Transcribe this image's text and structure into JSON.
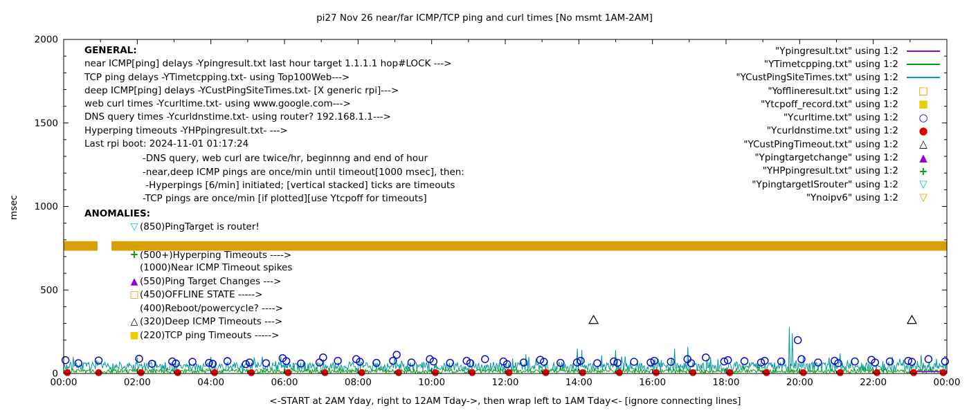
{
  "title": "pi27 Nov 26  near/far ICMP/TCP ping and curl times [No msmt 1AM-2AM]",
  "axes": {
    "ylabel": "msec",
    "y_ticks": [
      0,
      500,
      1000,
      1500,
      2000
    ],
    "x_tick_hours": [
      0,
      2,
      4,
      6,
      8,
      10,
      12,
      14,
      16,
      18,
      20,
      22,
      24
    ],
    "x_tick_labels": [
      "00:00",
      "02:00",
      "04:00",
      "06:00",
      "08:00",
      "10:00",
      "12:00",
      "14:00",
      "16:00",
      "18:00",
      "20:00",
      "22:00",
      "00:00"
    ],
    "x_label": "<-START at 2AM Yday, right to 12AM Tday->, then wrap left to 1AM Tday<- [ignore connecting lines]"
  },
  "legend": [
    {
      "label": "\"Ypingresult.txt\" using 1:2",
      "marker": "line",
      "color": "#9400D3"
    },
    {
      "label": "\"YTimetcpping.txt\" using 1:2",
      "marker": "line",
      "color": "#00A000"
    },
    {
      "label": "\"YCustPingSiteTimes.txt\" using 1:2",
      "marker": "line",
      "color": "#009999"
    },
    {
      "label": "\"Yofflineresult.txt\" using 1:2",
      "marker": "square-open",
      "color": "#FF8C00"
    },
    {
      "label": "\"Ytcpoff_record.txt\" using 1:2",
      "marker": "square-filled",
      "color": "#E8D000"
    },
    {
      "label": "\"Ycurltime.txt\" using 1:2",
      "marker": "circle-open",
      "color": "#0000CD"
    },
    {
      "label": "\"Ycurldnstime.txt\" using 1:2",
      "marker": "circle-filled",
      "color": "#DD0000"
    },
    {
      "label": "\"YCustPingTimeout.txt\" using 1:2",
      "marker": "triangle-open",
      "color": "#000000"
    },
    {
      "label": "\"Ypingtargetchange\" using 1:2",
      "marker": "triangle-filled",
      "color": "#9400D3"
    },
    {
      "label": "\"YHPpingresult.txt\" using 1:2",
      "marker": "plus",
      "color": "#00A000"
    },
    {
      "label": "\"YpingtargetISrouter\" using 1:2",
      "marker": "tri-down-open",
      "color": "#00C0C0"
    },
    {
      "label": "\"Ynoipv6\" using 1:2",
      "marker": "tri-down-open",
      "color": "#FF8C00"
    }
  ],
  "general": {
    "heading": "GENERAL:",
    "lines": [
      "near ICMP[ping] delays -Ypingresult.txt last hour target 1.1.1.1 hop#LOCK --->",
      "TCP ping delays -YTimetcpping.txt- using Top100Web--->",
      "deep ICMP[ping] delays -YCustPingSiteTimes.txt- [X generic rpi]--->",
      "web curl times -Ycurltime.txt- using www.google.com--->",
      "DNS query times -Ycurldnstime.txt- using router? 192.168.1.1--->",
      "Hyperping timeouts -YHPpingresult.txt- --->",
      "Last rpi boot: 2024-11-01 01:17:24"
    ],
    "notes": [
      "-DNS query, web curl are twice/hr, beginnng and end of hour",
      "-near,deep ICMP pings are once/min until timeout[1000 msec], then:",
      " -Hyperpings [6/min] initiated; [vertical stacked] ticks are timeouts",
      "-TCP pings are once/min [if plotted][use Ytcpoff for timeouts]"
    ]
  },
  "anomalies": {
    "heading": "ANOMALIES:",
    "items": [
      {
        "marker": "tri-down-open",
        "color": "#00C0C0",
        "text": "(850)PingTarget is router!"
      },
      {
        "marker": "",
        "color": "",
        "text": ""
      },
      {
        "marker": "plus",
        "color": "#00A000",
        "text": "(500+)Hyperping Timeouts ---->"
      },
      {
        "marker": "",
        "color": "",
        "text": "(1000)Near ICMP Timeout spikes"
      },
      {
        "marker": "triangle-filled",
        "color": "#9400D3",
        "text": "(550)Ping Target Changes --->"
      },
      {
        "marker": "square-open",
        "color": "#FF8C00",
        "text": "(450)OFFLINE STATE ----->"
      },
      {
        "marker": "",
        "color": "",
        "text": "(400)Reboot/powercycle? ---->"
      },
      {
        "marker": "triangle-open",
        "color": "#000000",
        "text": "(320)Deep ICMP Timeouts --->"
      },
      {
        "marker": "square-filled",
        "color": "#E8D000",
        "text": "(220)TCP ping Timeouts ----->"
      }
    ]
  },
  "chart_data": {
    "type": "line",
    "x_unit": "hours",
    "x_range": [
      0,
      24
    ],
    "y_range": [
      0,
      2000
    ],
    "grid": false,
    "legend_position": "top-right-inside",
    "no_measurement_window": [
      "01:00",
      "02:00"
    ],
    "band": {
      "name": "Ynoipv6",
      "y_low": 735,
      "y_high": 792,
      "color": "#D5A000",
      "gap_hours": [
        0.92,
        1.3
      ]
    },
    "series": [
      {
        "name": "YCustPingSiteTimes.txt",
        "type": "noisy-line",
        "color": "#009999",
        "baseline": [
          12,
          68
        ],
        "tick_prob": 0.1,
        "tick_extra": 50,
        "spikes": [
          [
            2.0,
            95
          ],
          [
            5.9,
            100
          ],
          [
            9.0,
            105
          ],
          [
            12.56,
            115
          ],
          [
            13.96,
            150
          ],
          [
            14.08,
            140
          ],
          [
            15.0,
            140
          ],
          [
            16.6,
            150
          ],
          [
            16.96,
            160
          ],
          [
            19.72,
            280
          ],
          [
            19.8,
            240
          ],
          [
            21.1,
            120
          ],
          [
            23.3,
            110
          ]
        ]
      },
      {
        "name": "YTimetcpping.txt",
        "type": "noisy-line",
        "color": "#00A000",
        "baseline": [
          3,
          26
        ],
        "tick_prob": 0.05,
        "tick_extra": 18,
        "spikes": []
      },
      {
        "name": "Ypingresult.txt",
        "type": "line",
        "color": "#9400D3",
        "points": [
          [
            23.0,
            12
          ],
          [
            24.0,
            12
          ]
        ]
      },
      {
        "name": "Ycurltime.txt",
        "type": "scatter",
        "marker": "circle-open",
        "color": "#0000CD",
        "points": [
          [
            0.05,
            80
          ],
          [
            0.4,
            62
          ],
          [
            0.95,
            78
          ],
          [
            2.05,
            88
          ],
          [
            2.4,
            58
          ],
          [
            2.95,
            72
          ],
          [
            3.05,
            60
          ],
          [
            3.5,
            70
          ],
          [
            3.95,
            64
          ],
          [
            4.05,
            58
          ],
          [
            4.45,
            74
          ],
          [
            4.95,
            56
          ],
          [
            5.05,
            66
          ],
          [
            5.5,
            62
          ],
          [
            5.95,
            92
          ],
          [
            6.05,
            74
          ],
          [
            6.45,
            60
          ],
          [
            6.95,
            66
          ],
          [
            7.05,
            96
          ],
          [
            7.45,
            76
          ],
          [
            7.95,
            86
          ],
          [
            8.05,
            70
          ],
          [
            8.5,
            64
          ],
          [
            8.95,
            76
          ],
          [
            9.05,
            112
          ],
          [
            9.45,
            66
          ],
          [
            9.95,
            86
          ],
          [
            10.05,
            72
          ],
          [
            10.5,
            64
          ],
          [
            10.95,
            76
          ],
          [
            11.05,
            62
          ],
          [
            11.45,
            86
          ],
          [
            11.95,
            72
          ],
          [
            12.05,
            56
          ],
          [
            12.5,
            66
          ],
          [
            12.95,
            82
          ],
          [
            13.05,
            70
          ],
          [
            13.5,
            64
          ],
          [
            13.95,
            66
          ],
          [
            14.05,
            76
          ],
          [
            14.5,
            62
          ],
          [
            14.95,
            72
          ],
          [
            15.05,
            64
          ],
          [
            15.5,
            70
          ],
          [
            15.95,
            66
          ],
          [
            16.05,
            76
          ],
          [
            16.5,
            70
          ],
          [
            16.95,
            86
          ],
          [
            17.05,
            62
          ],
          [
            17.45,
            96
          ],
          [
            17.95,
            72
          ],
          [
            18.05,
            80
          ],
          [
            18.5,
            74
          ],
          [
            18.95,
            66
          ],
          [
            19.05,
            76
          ],
          [
            19.5,
            72
          ],
          [
            19.95,
            200
          ],
          [
            20.05,
            86
          ],
          [
            20.5,
            66
          ],
          [
            20.95,
            76
          ],
          [
            21.05,
            62
          ],
          [
            21.5,
            72
          ],
          [
            21.95,
            82
          ],
          [
            22.05,
            66
          ],
          [
            22.45,
            72
          ],
          [
            22.95,
            76
          ],
          [
            23.05,
            70
          ],
          [
            23.5,
            86
          ],
          [
            23.95,
            72
          ]
        ]
      },
      {
        "name": "Ycurldnstime.txt",
        "type": "scatter",
        "marker": "circle-filled",
        "color": "#DD0000",
        "points": [
          [
            0.1,
            5
          ],
          [
            0.95,
            5
          ],
          [
            2.1,
            5
          ],
          [
            3.1,
            5
          ],
          [
            4.1,
            5
          ],
          [
            5.1,
            5
          ],
          [
            6.1,
            5
          ],
          [
            7.1,
            5
          ],
          [
            8.1,
            5
          ],
          [
            9.1,
            5
          ],
          [
            10.1,
            5
          ],
          [
            11.1,
            5
          ],
          [
            12.1,
            5
          ],
          [
            13.1,
            5
          ],
          [
            14.1,
            5
          ],
          [
            15.1,
            5
          ],
          [
            16.1,
            5
          ],
          [
            17.1,
            5
          ],
          [
            18.1,
            5
          ],
          [
            19.1,
            5
          ],
          [
            20.1,
            5
          ],
          [
            21.1,
            5
          ],
          [
            22.1,
            5
          ],
          [
            23.1,
            5
          ],
          [
            23.9,
            5
          ]
        ]
      },
      {
        "name": "YCustPingTimeout.txt",
        "type": "scatter",
        "marker": "triangle-open",
        "color": "#000000",
        "points": [
          [
            14.4,
            320
          ],
          [
            23.05,
            320
          ]
        ]
      }
    ]
  }
}
